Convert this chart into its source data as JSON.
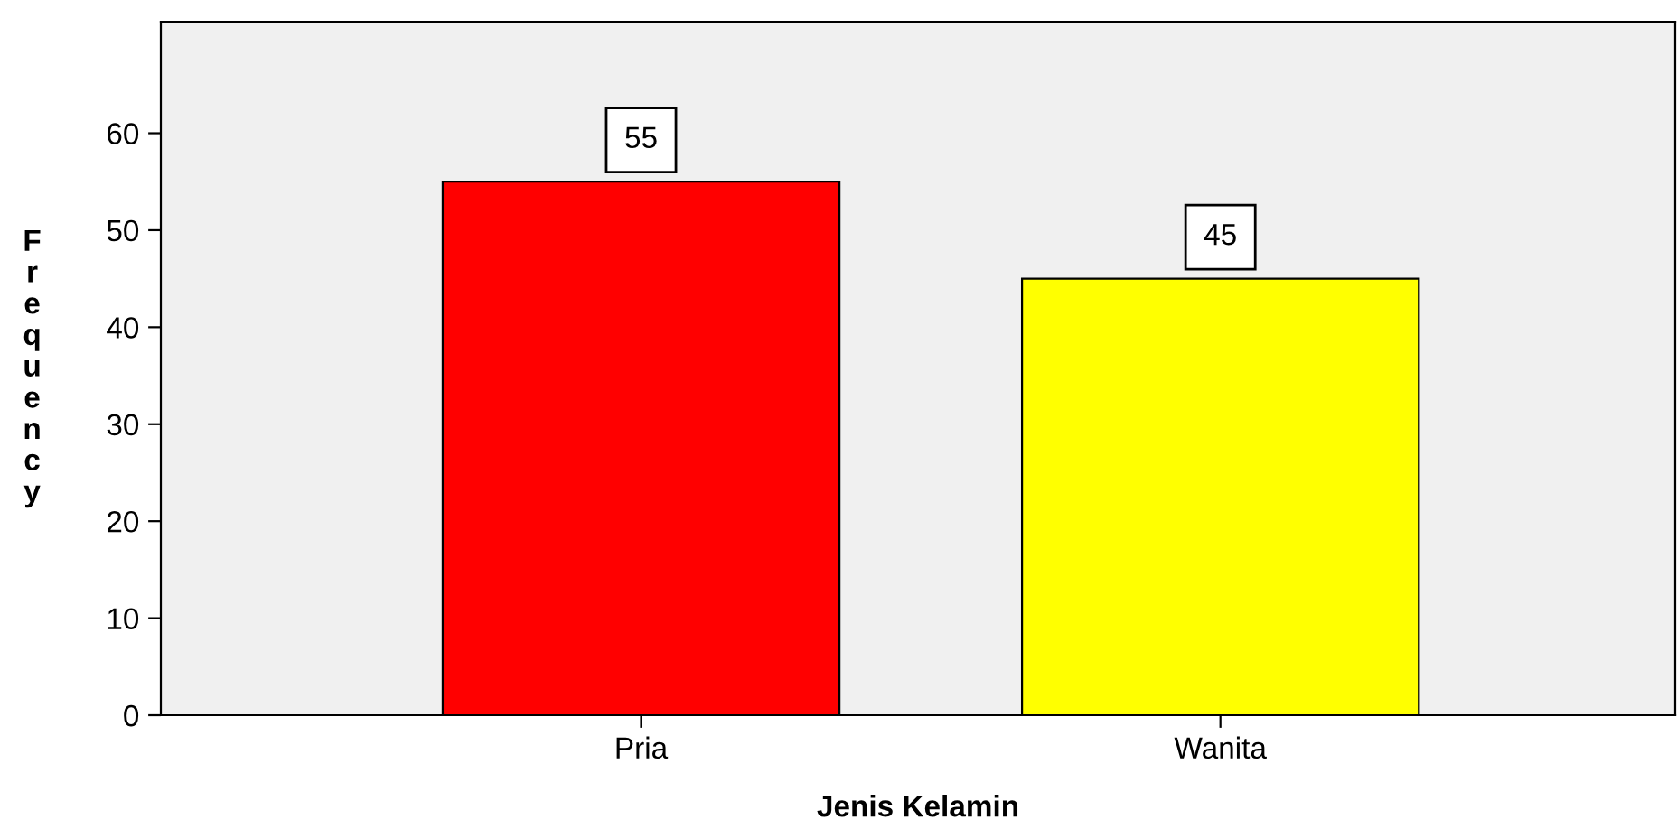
{
  "chart_data": {
    "type": "bar",
    "xlabel": "Jenis Kelamin",
    "ylabel": "Frequency",
    "categories": [
      "Pria",
      "Wanita"
    ],
    "values": [
      55,
      45
    ],
    "colors": [
      "#ff0000",
      "#ffff00"
    ],
    "ylim": [
      0,
      71.5
    ],
    "yticks": [
      0,
      10,
      20,
      30,
      40,
      50,
      60
    ],
    "grid": false,
    "data_labels": true
  }
}
